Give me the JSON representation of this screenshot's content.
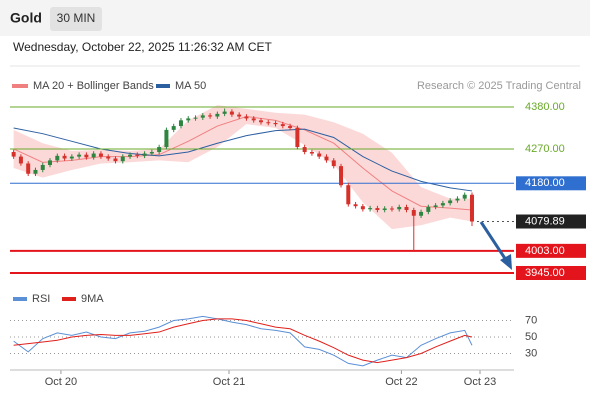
{
  "chart_data": {
    "type": "candlestick",
    "title": "Gold",
    "timeframe": "30 MIN",
    "timestamp": "Wednesday, October 22, 2025 11:26:32 AM CET",
    "source": "Research © 2025 Trading Central",
    "up_color": "#2e8540",
    "down_color": "#d6302b",
    "xlim": [
      -0.5,
      68.5
    ],
    "ylim": [
      3924,
      4414
    ],
    "xticks": [
      {
        "value": 6.5,
        "label": "Oct 20"
      },
      {
        "value": 29.6,
        "label": "Oct 21"
      },
      {
        "value": 53.3,
        "label": "Oct 22"
      },
      {
        "value": 64.1,
        "label": "Oct 23"
      }
    ],
    "candles": [
      [
        4262,
        4268,
        4244,
        4250
      ],
      [
        4250,
        4256,
        4226,
        4232
      ],
      [
        4232,
        4238,
        4199,
        4205
      ],
      [
        4205,
        4221,
        4199,
        4215
      ],
      [
        4215,
        4234,
        4209,
        4228
      ],
      [
        4228,
        4246,
        4222,
        4240
      ],
      [
        4240,
        4258,
        4234,
        4252
      ],
      [
        4252,
        4258,
        4239,
        4245
      ],
      [
        4245,
        4256,
        4239,
        4250
      ],
      [
        4250,
        4261,
        4244,
        4255
      ],
      [
        4255,
        4261,
        4242,
        4248
      ],
      [
        4248,
        4264,
        4242,
        4258
      ],
      [
        4258,
        4264,
        4244,
        4250
      ],
      [
        4250,
        4256,
        4239,
        4245
      ],
      [
        4245,
        4251,
        4232,
        4238
      ],
      [
        4238,
        4256,
        4232,
        4250
      ],
      [
        4250,
        4261,
        4244,
        4255
      ],
      [
        4255,
        4261,
        4246,
        4252
      ],
      [
        4252,
        4264,
        4246,
        4258
      ],
      [
        4258,
        4268,
        4252,
        4262
      ],
      [
        4262,
        4281,
        4256,
        4275
      ],
      [
        4275,
        4326,
        4269,
        4320
      ],
      [
        4320,
        4336,
        4314,
        4330
      ],
      [
        4330,
        4351,
        4324,
        4345
      ],
      [
        4345,
        4356,
        4339,
        4350
      ],
      [
        4350,
        4358,
        4344,
        4352
      ],
      [
        4352,
        4364,
        4346,
        4358
      ],
      [
        4358,
        4364,
        4349,
        4355
      ],
      [
        4355,
        4368,
        4349,
        4362
      ],
      [
        4362,
        4376,
        4356,
        4368
      ],
      [
        4368,
        4374,
        4354,
        4360
      ],
      [
        4360,
        4366,
        4349,
        4355
      ],
      [
        4355,
        4361,
        4344,
        4350
      ],
      [
        4350,
        4356,
        4339,
        4345
      ],
      [
        4345,
        4351,
        4334,
        4340
      ],
      [
        4340,
        4346,
        4332,
        4338
      ],
      [
        4338,
        4344,
        4329,
        4335
      ],
      [
        4335,
        4341,
        4324,
        4330
      ],
      [
        4330,
        4336,
        4319,
        4325
      ],
      [
        4325,
        4331,
        4269,
        4275
      ],
      [
        4275,
        4281,
        4256,
        4262
      ],
      [
        4262,
        4268,
        4252,
        4258
      ],
      [
        4258,
        4264,
        4244,
        4250
      ],
      [
        4250,
        4256,
        4234,
        4240
      ],
      [
        4240,
        4246,
        4219,
        4225
      ],
      [
        4225,
        4231,
        4169,
        4175
      ],
      [
        4175,
        4181,
        4119,
        4125
      ],
      [
        4125,
        4131,
        4114,
        4120
      ],
      [
        4120,
        4126,
        4106,
        4112
      ],
      [
        4112,
        4121,
        4106,
        4115
      ],
      [
        4115,
        4121,
        4104,
        4110
      ],
      [
        4110,
        4120,
        4104,
        4114
      ],
      [
        4114,
        4120,
        4106,
        4112
      ],
      [
        4112,
        4124,
        4106,
        4118
      ],
      [
        4118,
        4124,
        4104,
        4110
      ],
      [
        4110,
        4116,
        4003,
        4095
      ],
      [
        4095,
        4111,
        4089,
        4105
      ],
      [
        4105,
        4124,
        4099,
        4118
      ],
      [
        4118,
        4128,
        4112,
        4122
      ],
      [
        4122,
        4134,
        4116,
        4128
      ],
      [
        4128,
        4141,
        4122,
        4135
      ],
      [
        4135,
        4146,
        4129,
        4140
      ],
      [
        4140,
        4156,
        4134,
        4150
      ],
      [
        4150,
        4156,
        4068,
        4079.89
      ]
    ],
    "bollinger": {
      "name": "MA 20 + Bollinger Bands",
      "color": "#f08080",
      "fill": "#fcd9d9",
      "x": [
        0,
        4,
        8,
        12,
        16,
        20,
        24,
        28,
        32,
        36,
        40,
        44,
        48,
        52,
        56,
        60,
        63
      ],
      "middle": [
        4270,
        4235,
        4240,
        4250,
        4250,
        4255,
        4290,
        4330,
        4355,
        4345,
        4320,
        4285,
        4220,
        4160,
        4120,
        4115,
        4110
      ],
      "upper": [
        4320,
        4285,
        4265,
        4268,
        4265,
        4270,
        4345,
        4385,
        4375,
        4365,
        4360,
        4340,
        4310,
        4260,
        4170,
        4140,
        4140
      ],
      "lower": [
        4220,
        4195,
        4215,
        4232,
        4235,
        4240,
        4235,
        4275,
        4335,
        4325,
        4280,
        4230,
        4130,
        4060,
        4070,
        4090,
        4080
      ]
    },
    "ma50": {
      "name": "MA 50",
      "color": "#2c5fa0",
      "x": [
        0,
        4,
        8,
        12,
        16,
        20,
        24,
        28,
        32,
        36,
        40,
        44,
        48,
        52,
        56,
        60,
        63
      ],
      "values": [
        4325,
        4310,
        4290,
        4270,
        4258,
        4252,
        4262,
        4285,
        4305,
        4318,
        4322,
        4300,
        4250,
        4212,
        4185,
        4168,
        4160
      ]
    },
    "levels": [
      {
        "value": 4380,
        "label": "4380.00",
        "color": "#6aaa2a",
        "boxed": false,
        "width": 1
      },
      {
        "value": 4270,
        "label": "4270.00",
        "color": "#6aaa2a",
        "boxed": false,
        "width": 1
      },
      {
        "value": 4180,
        "label": "4180.00",
        "color": "#2f6fd0",
        "boxed": true,
        "width": 1
      },
      {
        "value": 4079.89,
        "color": "#222222",
        "boxed": true,
        "width": 1,
        "dotted": true
      },
      {
        "value": 4003,
        "label": "4003.00",
        "color": "#e3141b",
        "boxed": true,
        "width": 2
      },
      {
        "value": 3945,
        "label": "3945.00",
        "color": "#e3141b",
        "boxed": true,
        "width": 2
      }
    ],
    "rsi_panel": {
      "ylim": [
        10,
        90
      ],
      "yticks": [
        30,
        50,
        70
      ],
      "series": [
        {
          "name": "RSI",
          "color": "#5b8fd6",
          "x": [
            0,
            2,
            4,
            6,
            8,
            10,
            12,
            14,
            16,
            18,
            20,
            22,
            24,
            26,
            28,
            30,
            32,
            34,
            36,
            38,
            40,
            42,
            44,
            46,
            48,
            50,
            52,
            54,
            56,
            58,
            60,
            62,
            63
          ],
          "values": [
            45,
            32,
            48,
            55,
            52,
            56,
            50,
            48,
            55,
            57,
            62,
            70,
            72,
            75,
            72,
            68,
            65,
            60,
            58,
            55,
            38,
            35,
            28,
            18,
            15,
            22,
            28,
            25,
            40,
            48,
            55,
            58,
            40
          ]
        },
        {
          "name": "9MA",
          "color": "#e0201b",
          "x": [
            0,
            2,
            4,
            6,
            8,
            10,
            12,
            14,
            16,
            18,
            20,
            22,
            24,
            26,
            28,
            30,
            32,
            34,
            36,
            38,
            40,
            42,
            44,
            46,
            48,
            50,
            52,
            54,
            56,
            58,
            60,
            62,
            63
          ],
          "values": [
            40,
            42,
            44,
            46,
            50,
            52,
            53,
            52,
            52,
            54,
            56,
            62,
            66,
            70,
            72,
            72,
            70,
            66,
            62,
            60,
            52,
            45,
            37,
            28,
            22,
            19,
            22,
            25,
            30,
            38,
            45,
            52,
            50
          ]
        }
      ]
    }
  }
}
